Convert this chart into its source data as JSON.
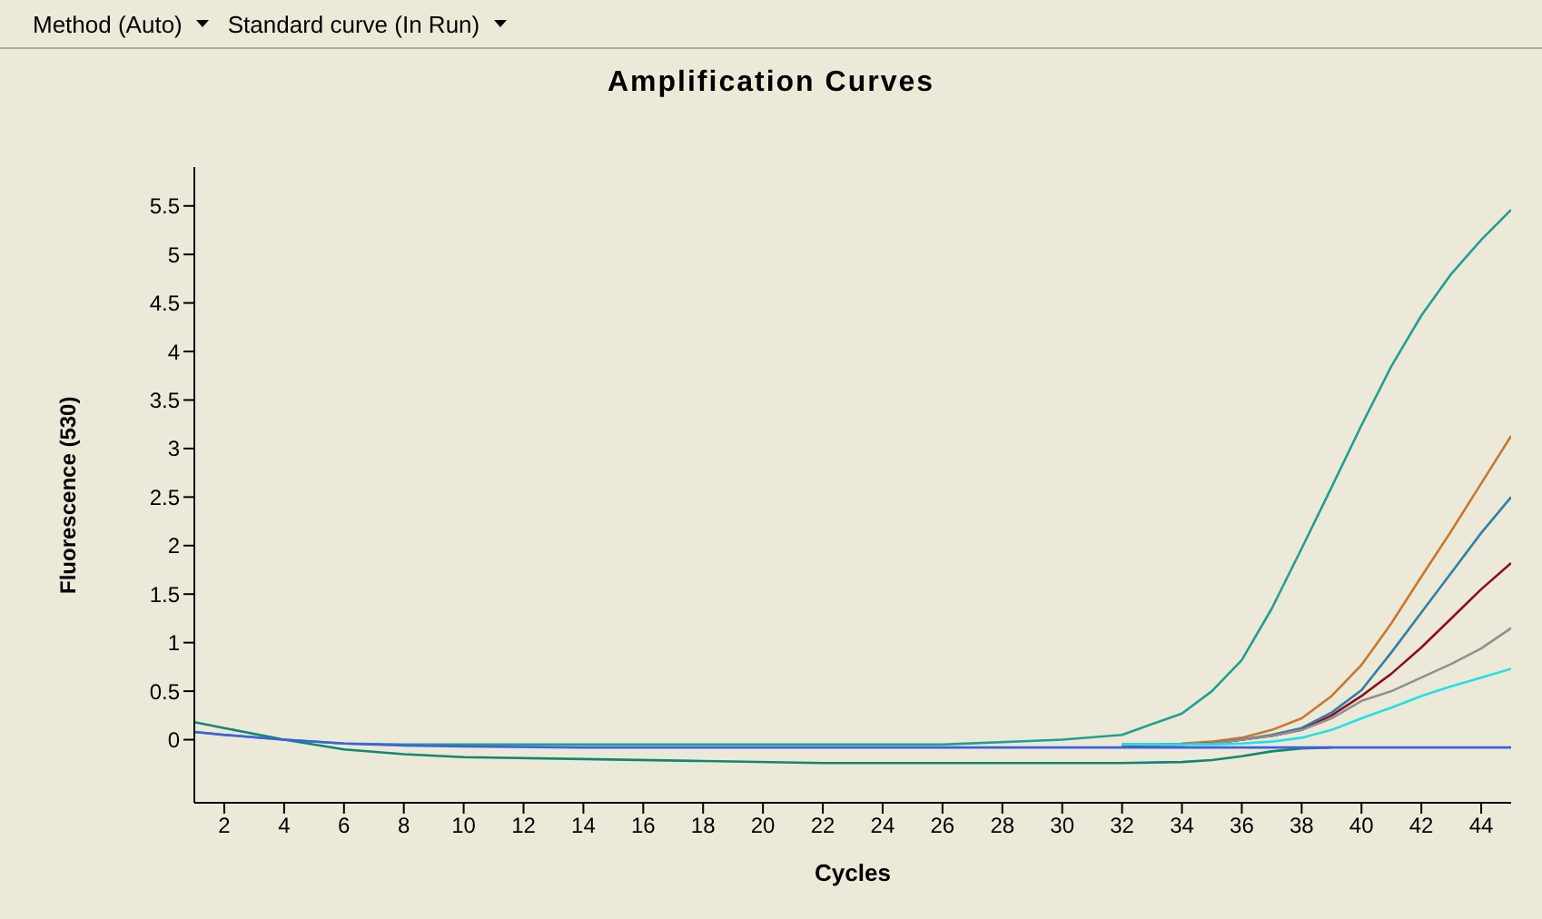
{
  "chart_data": {
    "type": "line",
    "title": "Amplification Curves",
    "xlabel": "Cycles",
    "ylabel": "Fluorescence (530)",
    "annotations": [
      "Method (Auto)",
      "Standard curve (In Run)"
    ],
    "x": [
      1,
      2,
      4,
      6,
      8,
      10,
      14,
      18,
      22,
      26,
      30,
      32,
      34,
      35,
      36,
      37,
      38,
      39,
      40,
      41,
      42,
      43,
      44,
      45
    ],
    "xlim": [
      1,
      45
    ],
    "xticks": [
      2,
      4,
      6,
      8,
      10,
      12,
      14,
      16,
      18,
      20,
      22,
      24,
      26,
      28,
      30,
      32,
      34,
      36,
      38,
      40,
      42,
      44
    ],
    "ylim": [
      -0.65,
      5.9
    ],
    "yticks": [
      0,
      0.5,
      1,
      1.5,
      2,
      2.5,
      3,
      3.5,
      4,
      4.5,
      5,
      5.5
    ],
    "grid": false,
    "legend": false,
    "marker": "none",
    "line_style": "solid",
    "series": [
      {
        "color": "#20a090",
        "values": [
          0.08,
          0.05,
          0,
          -0.04,
          -0.05,
          -0.05,
          -0.05,
          -0.05,
          -0.05,
          -0.05,
          0,
          0.05,
          0.27,
          0.5,
          0.82,
          1.35,
          1.97,
          2.6,
          3.24,
          3.85,
          4.37,
          4.8,
          5.15,
          5.46
        ]
      },
      {
        "color": "#c87830",
        "values": [
          null,
          null,
          null,
          null,
          null,
          null,
          null,
          null,
          null,
          null,
          null,
          null,
          -0.04,
          -0.02,
          0.02,
          0.1,
          0.22,
          0.45,
          0.77,
          1.2,
          1.68,
          2.15,
          2.64,
          3.13
        ]
      },
      {
        "color": "#3080a8",
        "values": [
          null,
          null,
          null,
          null,
          null,
          null,
          null,
          null,
          null,
          null,
          null,
          -0.05,
          -0.05,
          -0.04,
          0,
          0.05,
          0.12,
          0.28,
          0.51,
          0.9,
          1.31,
          1.72,
          2.13,
          2.5
        ]
      },
      {
        "color": "#8b1020",
        "values": [
          null,
          null,
          null,
          null,
          null,
          null,
          null,
          null,
          null,
          null,
          null,
          -0.06,
          -0.05,
          -0.04,
          0,
          0.04,
          0.1,
          0.25,
          0.45,
          0.68,
          0.95,
          1.25,
          1.55,
          1.82
        ]
      },
      {
        "color": "#909090",
        "values": [
          null,
          null,
          null,
          null,
          null,
          null,
          null,
          null,
          null,
          null,
          null,
          -0.05,
          -0.05,
          -0.04,
          0,
          0.04,
          0.1,
          0.22,
          0.4,
          0.5,
          0.64,
          0.78,
          0.94,
          1.15
        ]
      },
      {
        "color": "#20e0e8",
        "values": [
          null,
          null,
          null,
          null,
          null,
          null,
          null,
          null,
          null,
          null,
          null,
          -0.05,
          -0.05,
          -0.05,
          -0.04,
          -0.02,
          0.02,
          0.1,
          0.22,
          0.33,
          0.45,
          0.55,
          0.64,
          0.73
        ]
      },
      {
        "color": "#108870",
        "values": [
          0.18,
          0.12,
          0,
          -0.1,
          -0.15,
          -0.18,
          -0.2,
          -0.22,
          -0.24,
          -0.24,
          -0.24,
          -0.24,
          -0.23,
          -0.21,
          -0.17,
          -0.12,
          -0.09,
          -0.08,
          null,
          null,
          null,
          null,
          null,
          null
        ]
      },
      {
        "color": "#4060e0",
        "values": [
          0.08,
          0.05,
          0,
          -0.04,
          -0.06,
          -0.07,
          -0.08,
          -0.08,
          -0.08,
          -0.08,
          -0.08,
          -0.08,
          -0.08,
          -0.08,
          -0.08,
          -0.08,
          -0.08,
          -0.08,
          -0.08,
          -0.08,
          -0.08,
          -0.08,
          -0.08,
          -0.08
        ]
      }
    ]
  }
}
